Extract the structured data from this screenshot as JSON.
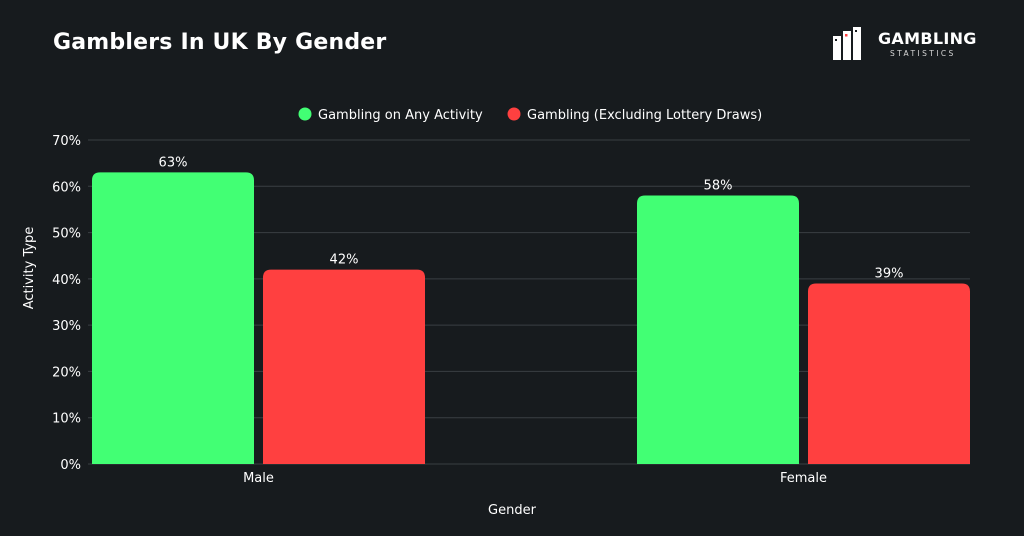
{
  "header": {
    "title": "Gamblers In UK By Gender"
  },
  "logo": {
    "name": "GAMBLING",
    "tagline": "STATISTICS"
  },
  "colors": {
    "background": "#171b1e",
    "grid": "#3a3f43",
    "series_green": "#42ff74",
    "series_red": "#ff4040"
  },
  "chart_data": {
    "type": "bar",
    "title": "Gamblers In UK By Gender",
    "xlabel": "Gender",
    "ylabel": "Activity Type",
    "categories": [
      "Male",
      "Female"
    ],
    "series": [
      {
        "name": "Gambling on Any Activity",
        "values": [
          63,
          58
        ],
        "color": "#42ff74"
      },
      {
        "name": "Gambling (Excluding Lottery Draws)",
        "values": [
          42,
          39
        ],
        "color": "#ff4040"
      }
    ],
    "ylim": [
      0,
      70
    ],
    "yticks": [
      0,
      10,
      20,
      30,
      40,
      50,
      60,
      70
    ],
    "ytick_labels": [
      "0%",
      "10%",
      "20%",
      "30%",
      "40%",
      "50%",
      "60%",
      "70%"
    ],
    "data_labels": [
      [
        "63%",
        "58%"
      ],
      [
        "42%",
        "39%"
      ]
    ],
    "grid": true,
    "legend_position": "top-center"
  }
}
